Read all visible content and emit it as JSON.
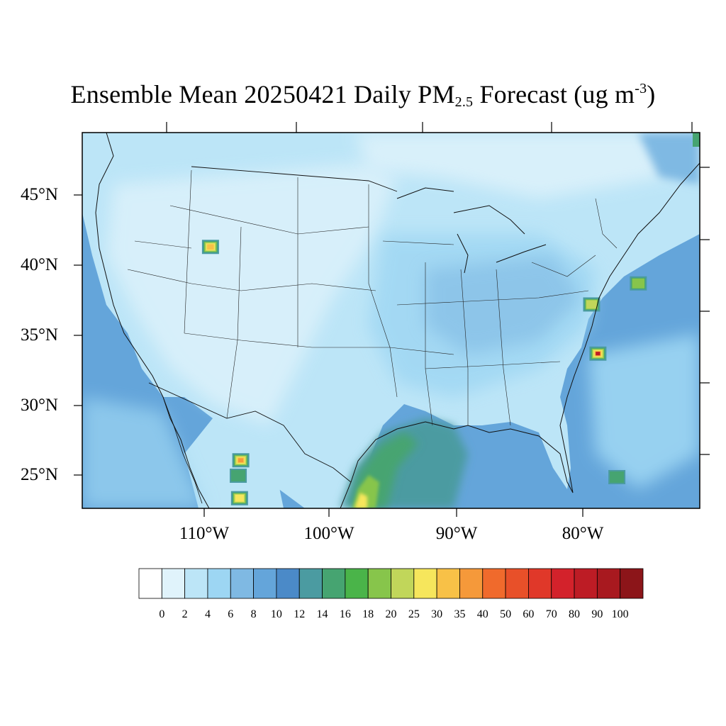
{
  "title": {
    "prefix": "Ensemble Mean 20250421 Daily PM",
    "subscript": "2.5",
    "middle": " Forecast (ug m",
    "superscript": "-3",
    "suffix": ")"
  },
  "map": {
    "projection": "lambert-conformal",
    "extent": {
      "lon_min": -120,
      "lon_max": -70,
      "lat_min": 22,
      "lat_max": 50
    },
    "colors": {
      "open_ocean": "#63a6dc",
      "gulf_plume": "#45a16f",
      "land_background": "#b8e2f6",
      "coastline": "#000000",
      "state_lines": "#1a1a1a"
    }
  },
  "axes": {
    "lat_labels": [
      "45°N",
      "40°N",
      "35°N",
      "30°N",
      "25°N"
    ],
    "lon_labels": [
      "110°W",
      "100°W",
      "90°W",
      "80°W"
    ]
  },
  "colorbar": {
    "labels": [
      "0",
      "2",
      "4",
      "6",
      "8",
      "10",
      "12",
      "14",
      "16",
      "18",
      "20",
      "25",
      "30",
      "35",
      "40",
      "50",
      "60",
      "70",
      "80",
      "90",
      "100"
    ],
    "colors": [
      "#ffffff",
      "#e0f3fb",
      "#bce5f7",
      "#9dd6f3",
      "#7fb9e3",
      "#64a5da",
      "#4b8ac8",
      "#4b9ba1",
      "#46a471",
      "#4ab449",
      "#87c54b",
      "#c1d65a",
      "#f6e65c",
      "#f8c147",
      "#f5993a",
      "#f06a2c",
      "#e85029",
      "#e03829",
      "#d3222b",
      "#bd1c25",
      "#a8191f",
      "#8c1519"
    ]
  },
  "hotspots": [
    {
      "name": "southwest-wyoming",
      "lon": -109.5,
      "lat": 41.3,
      "peak_ugm3": 35
    },
    {
      "name": "chihuahua-north",
      "lon": -107.1,
      "lat": 26.1,
      "peak_ugm3": 40
    },
    {
      "name": "chihuahua-south",
      "lon": -107.2,
      "lat": 23.4,
      "peak_ugm3": 30
    },
    {
      "name": "sinaloa",
      "lon": -107.3,
      "lat": 25.0,
      "peak_ugm3": 18
    },
    {
      "name": "virginia",
      "lon": -79.3,
      "lat": 37.2,
      "peak_ugm3": 25
    },
    {
      "name": "delaware",
      "lon": -75.6,
      "lat": 38.7,
      "peak_ugm3": 20
    },
    {
      "name": "south-carolina",
      "lon": -78.8,
      "lat": 33.7,
      "peak_ugm3": 90
    },
    {
      "name": "bahamas",
      "lon": -77.3,
      "lat": 24.9,
      "peak_ugm3": 16
    },
    {
      "name": "gulf-of-mexico-smoke",
      "lon": -95.5,
      "lat": 25.5,
      "peak_ugm3": 30
    }
  ]
}
